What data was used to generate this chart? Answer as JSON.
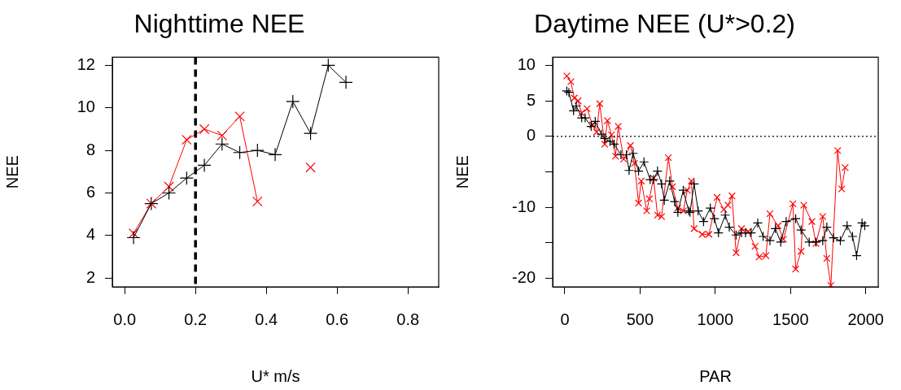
{
  "chart_data": [
    {
      "type": "line",
      "title": "Nighttime NEE",
      "xlabel": "U* m/s",
      "ylabel": "NEE",
      "legend": false,
      "grid": false,
      "xlim": [
        -0.035,
        0.887
      ],
      "ylim": [
        1.59,
        12.38
      ],
      "xticks": [
        {
          "value": 0,
          "label": "0.0"
        },
        {
          "value": 0.2,
          "label": "0.2"
        },
        {
          "value": 0.4,
          "label": "0.4"
        },
        {
          "value": 0.6,
          "label": "0.6"
        },
        {
          "value": 0.8,
          "label": "0.8"
        }
      ],
      "yticks": [
        2,
        4,
        6,
        8,
        10,
        12
      ],
      "x": [
        0.025,
        0.075,
        0.125,
        0.175,
        0.225,
        0.275,
        0.325,
        0.375,
        0.425,
        0.475,
        0.525,
        0.575,
        0.625
      ],
      "series": [
        {
          "color": "#000000",
          "marker": "plus",
          "values": [
            3.9,
            5.5,
            6.0,
            6.7,
            7.3,
            8.3,
            7.9,
            8.0,
            7.8,
            10.3,
            8.8,
            12.0,
            11.2
          ]
        },
        {
          "color": "#ff0000",
          "marker": "cross",
          "values": [
            4.1,
            5.5,
            6.3,
            8.5,
            9.0,
            8.7,
            9.6,
            5.6,
            null,
            null,
            7.2,
            null,
            null
          ]
        }
      ],
      "ref_lines": [
        {
          "axis": "x",
          "value": 0.2,
          "color": "#000000",
          "line_style": "dashed"
        }
      ]
    },
    {
      "type": "line",
      "title": "Daytime NEE (U*>0.2)",
      "xlabel": "PAR",
      "ylabel": "NEE",
      "legend": false,
      "grid": false,
      "xlim": [
        -81,
        2083
      ],
      "ylim": [
        -21.2,
        11.15
      ],
      "xticks": [
        0,
        500,
        1000,
        1500,
        2000
      ],
      "yticks": [
        {
          "value": -20,
          "label": "-20"
        },
        {
          "value": -15,
          "label": null
        },
        {
          "value": -10,
          "label": "-10"
        },
        {
          "value": -5,
          "label": null
        },
        0,
        5,
        10
      ],
      "series": [
        {
          "color": "#000000",
          "marker": "plus",
          "x": [
            13,
            27,
            58,
            76,
            112,
            135,
            175,
            202,
            243,
            265,
            300,
            328,
            373,
            409,
            427,
            454,
            490,
            526,
            567,
            589,
            616,
            643,
            661,
            697,
            730,
            751,
            787,
            823,
            832,
            859,
            886,
            922,
            967,
            994,
            1021,
            1066,
            1093,
            1138,
            1174,
            1201,
            1238,
            1282,
            1318,
            1363,
            1399,
            1435,
            1471,
            1534,
            1570,
            1624,
            1669,
            1714,
            1741,
            1786,
            1831,
            1876,
            1912,
            1939,
            1975,
            1993
          ],
          "values": [
            6.4,
            6.2,
            3.6,
            4.3,
            2.6,
            2.6,
            1.4,
            2.1,
            0.3,
            -0.3,
            -0.7,
            -1.1,
            -2.6,
            -2.6,
            -4.8,
            -2.4,
            -4.9,
            -3.6,
            -6.1,
            -6.1,
            -4.9,
            -6.7,
            -9.0,
            -6.3,
            -9.2,
            -10.7,
            -7.6,
            -10.5,
            -10.7,
            -6.7,
            -10.5,
            -12.0,
            -10.1,
            -11.6,
            -13.6,
            -11.1,
            -12.8,
            -13.9,
            -13.6,
            -13.6,
            -13.6,
            -12.2,
            -14.1,
            -14.7,
            -13.0,
            -14.9,
            -12.0,
            -11.6,
            -13.2,
            -14.9,
            -14.9,
            -14.7,
            -12.8,
            -14.3,
            -14.7,
            -12.6,
            -14.1,
            -16.8,
            -12.2,
            -12.6
          ]
        },
        {
          "color": "#ff0000",
          "marker": "cross",
          "x": [
            13,
            40,
            63,
            88,
            112,
            148,
            184,
            211,
            232,
            265,
            283,
            310,
            337,
            355,
            391,
            436,
            463,
            490,
            508,
            544,
            562,
            589,
            616,
            643,
            688,
            715,
            751,
            787,
            814,
            841,
            859,
            913,
            958,
            1012,
            1057,
            1084,
            1111,
            1138,
            1174,
            1219,
            1264,
            1291,
            1336,
            1363,
            1417,
            1453,
            1516,
            1534,
            1570,
            1588,
            1642,
            1669,
            1714,
            1741,
            1768,
            1813,
            1840,
            1863
          ],
          "values": [
            8.5,
            7.7,
            5.4,
            5.0,
            3.3,
            3.9,
            1.6,
            0.6,
            4.6,
            -1.1,
            2.2,
            0.2,
            -2.8,
            1.4,
            -3.2,
            -1.3,
            -3.8,
            -9.4,
            -6.3,
            -10.5,
            -8.8,
            -5.9,
            -11.1,
            -11.3,
            -3.0,
            -7.1,
            -10.1,
            -10.5,
            -7.6,
            -6.3,
            -13.0,
            -13.8,
            -13.8,
            -8.6,
            -10.3,
            -9.7,
            -8.4,
            -16.4,
            -13.0,
            -13.4,
            -15.5,
            -17.0,
            -16.8,
            -10.9,
            -12.6,
            -14.5,
            -9.5,
            -18.7,
            -16.2,
            -9.7,
            -12.0,
            -15.1,
            -11.3,
            -17.2,
            -21.0,
            -2.0,
            -7.4,
            -4.4
          ]
        }
      ],
      "ref_lines": [
        {
          "axis": "y",
          "value": 0,
          "color": "#000000",
          "line_style": "dotted"
        }
      ]
    }
  ]
}
